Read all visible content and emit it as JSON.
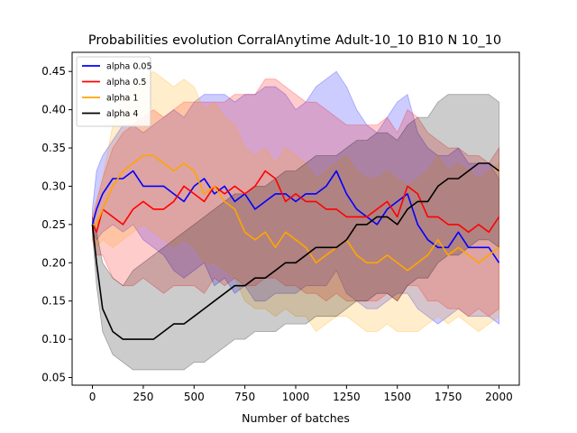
{
  "chart_data": {
    "type": "line",
    "title": "Probabilities evolution CorralAnytime Adult-10_10 B10 N 10_10",
    "xlabel": "Number of batches",
    "ylabel": "",
    "xlim": [
      -100,
      2100
    ],
    "ylim": [
      0.04,
      0.475
    ],
    "xticks": [
      0,
      250,
      500,
      750,
      1000,
      1250,
      1500,
      1750,
      2000
    ],
    "yticks": [
      0.05,
      0.1,
      0.15,
      0.2,
      0.25,
      0.3,
      0.35,
      0.4,
      0.45
    ],
    "ytick_labels": [
      "0.05",
      "0.10",
      "0.15",
      "0.20",
      "0.25",
      "0.30",
      "0.35",
      "0.40",
      "0.45"
    ],
    "grid": false,
    "legend_position": "top-left",
    "band_opacity": 0.2,
    "x": [
      0,
      20,
      50,
      100,
      150,
      200,
      250,
      300,
      350,
      400,
      450,
      500,
      550,
      600,
      650,
      700,
      750,
      800,
      850,
      900,
      950,
      1000,
      1050,
      1100,
      1150,
      1200,
      1250,
      1300,
      1350,
      1400,
      1450,
      1500,
      1550,
      1600,
      1650,
      1700,
      1750,
      1800,
      1850,
      1900,
      1950,
      2000
    ],
    "series": [
      {
        "name": "alpha 0.05",
        "color": "#0000ff",
        "values": [
          0.25,
          0.27,
          0.29,
          0.31,
          0.31,
          0.32,
          0.3,
          0.3,
          0.3,
          0.29,
          0.28,
          0.3,
          0.31,
          0.29,
          0.3,
          0.28,
          0.29,
          0.27,
          0.28,
          0.29,
          0.29,
          0.28,
          0.29,
          0.29,
          0.3,
          0.32,
          0.29,
          0.27,
          0.26,
          0.25,
          0.27,
          0.28,
          0.29,
          0.25,
          0.23,
          0.22,
          0.22,
          0.24,
          0.22,
          0.22,
          0.22,
          0.2
        ],
        "upper": [
          0.27,
          0.32,
          0.34,
          0.36,
          0.38,
          0.38,
          0.37,
          0.38,
          0.39,
          0.4,
          0.39,
          0.41,
          0.42,
          0.42,
          0.42,
          0.41,
          0.42,
          0.42,
          0.43,
          0.43,
          0.42,
          0.4,
          0.41,
          0.43,
          0.44,
          0.45,
          0.43,
          0.4,
          0.38,
          0.37,
          0.39,
          0.41,
          0.42,
          0.37,
          0.35,
          0.34,
          0.34,
          0.35,
          0.33,
          0.33,
          0.33,
          0.31
        ],
        "lower": [
          0.24,
          0.23,
          0.24,
          0.25,
          0.24,
          0.25,
          0.23,
          0.22,
          0.21,
          0.19,
          0.18,
          0.19,
          0.2,
          0.17,
          0.18,
          0.16,
          0.17,
          0.15,
          0.15,
          0.16,
          0.16,
          0.16,
          0.17,
          0.17,
          0.17,
          0.19,
          0.16,
          0.15,
          0.14,
          0.14,
          0.15,
          0.16,
          0.16,
          0.14,
          0.13,
          0.12,
          0.13,
          0.14,
          0.13,
          0.13,
          0.13,
          0.12
        ]
      },
      {
        "name": "alpha 0.5",
        "color": "#ff0000",
        "values": [
          0.25,
          0.24,
          0.27,
          0.26,
          0.25,
          0.27,
          0.28,
          0.27,
          0.27,
          0.28,
          0.3,
          0.29,
          0.28,
          0.3,
          0.29,
          0.3,
          0.29,
          0.3,
          0.32,
          0.31,
          0.28,
          0.29,
          0.28,
          0.28,
          0.27,
          0.27,
          0.26,
          0.26,
          0.26,
          0.27,
          0.28,
          0.26,
          0.3,
          0.29,
          0.26,
          0.26,
          0.25,
          0.25,
          0.24,
          0.25,
          0.24,
          0.26
        ],
        "upper": [
          0.26,
          0.28,
          0.31,
          0.35,
          0.37,
          0.38,
          0.39,
          0.4,
          0.39,
          0.4,
          0.41,
          0.41,
          0.41,
          0.41,
          0.41,
          0.42,
          0.42,
          0.42,
          0.44,
          0.44,
          0.43,
          0.42,
          0.41,
          0.41,
          0.4,
          0.39,
          0.38,
          0.38,
          0.38,
          0.38,
          0.39,
          0.37,
          0.4,
          0.39,
          0.37,
          0.36,
          0.35,
          0.35,
          0.34,
          0.34,
          0.33,
          0.35
        ],
        "lower": [
          0.23,
          0.21,
          0.21,
          0.18,
          0.17,
          0.17,
          0.18,
          0.17,
          0.16,
          0.17,
          0.17,
          0.17,
          0.16,
          0.18,
          0.17,
          0.18,
          0.17,
          0.17,
          0.18,
          0.18,
          0.17,
          0.17,
          0.16,
          0.16,
          0.15,
          0.16,
          0.15,
          0.15,
          0.15,
          0.15,
          0.16,
          0.15,
          0.17,
          0.17,
          0.15,
          0.15,
          0.14,
          0.14,
          0.13,
          0.14,
          0.13,
          0.14
        ]
      },
      {
        "name": "alpha 1",
        "color": "#ffa500",
        "values": [
          0.25,
          0.25,
          0.27,
          0.3,
          0.32,
          0.33,
          0.34,
          0.34,
          0.33,
          0.32,
          0.33,
          0.32,
          0.29,
          0.3,
          0.28,
          0.27,
          0.24,
          0.23,
          0.24,
          0.22,
          0.24,
          0.23,
          0.22,
          0.2,
          0.21,
          0.22,
          0.23,
          0.21,
          0.2,
          0.2,
          0.21,
          0.2,
          0.19,
          0.2,
          0.21,
          0.23,
          0.21,
          0.22,
          0.21,
          0.2,
          0.21,
          0.22
        ],
        "upper": [
          0.26,
          0.28,
          0.31,
          0.38,
          0.42,
          0.43,
          0.44,
          0.45,
          0.44,
          0.43,
          0.44,
          0.43,
          0.4,
          0.41,
          0.39,
          0.38,
          0.35,
          0.34,
          0.35,
          0.33,
          0.35,
          0.34,
          0.33,
          0.31,
          0.32,
          0.33,
          0.34,
          0.32,
          0.31,
          0.31,
          0.32,
          0.31,
          0.3,
          0.31,
          0.32,
          0.34,
          0.32,
          0.33,
          0.32,
          0.31,
          0.32,
          0.33
        ],
        "lower": [
          0.24,
          0.22,
          0.23,
          0.22,
          0.23,
          0.24,
          0.25,
          0.24,
          0.23,
          0.22,
          0.23,
          0.22,
          0.2,
          0.2,
          0.19,
          0.18,
          0.15,
          0.14,
          0.14,
          0.13,
          0.14,
          0.13,
          0.13,
          0.11,
          0.12,
          0.13,
          0.13,
          0.12,
          0.11,
          0.11,
          0.12,
          0.11,
          0.11,
          0.11,
          0.12,
          0.13,
          0.12,
          0.13,
          0.12,
          0.11,
          0.12,
          0.13
        ]
      },
      {
        "name": "alpha 4",
        "color": "#000000",
        "values": [
          0.25,
          0.2,
          0.14,
          0.11,
          0.1,
          0.1,
          0.1,
          0.1,
          0.11,
          0.12,
          0.12,
          0.13,
          0.14,
          0.15,
          0.16,
          0.17,
          0.17,
          0.18,
          0.18,
          0.19,
          0.2,
          0.2,
          0.21,
          0.22,
          0.22,
          0.22,
          0.23,
          0.25,
          0.25,
          0.26,
          0.26,
          0.25,
          0.27,
          0.28,
          0.28,
          0.3,
          0.31,
          0.31,
          0.32,
          0.33,
          0.33,
          0.32
        ],
        "upper": [
          0.26,
          0.24,
          0.2,
          0.18,
          0.17,
          0.19,
          0.2,
          0.21,
          0.22,
          0.23,
          0.24,
          0.25,
          0.26,
          0.27,
          0.28,
          0.29,
          0.29,
          0.3,
          0.3,
          0.31,
          0.32,
          0.32,
          0.33,
          0.34,
          0.34,
          0.34,
          0.35,
          0.36,
          0.36,
          0.37,
          0.37,
          0.36,
          0.38,
          0.39,
          0.39,
          0.41,
          0.42,
          0.42,
          0.42,
          0.42,
          0.42,
          0.41
        ],
        "lower": [
          0.24,
          0.17,
          0.11,
          0.08,
          0.07,
          0.06,
          0.06,
          0.06,
          0.06,
          0.06,
          0.06,
          0.07,
          0.07,
          0.08,
          0.09,
          0.1,
          0.1,
          0.11,
          0.11,
          0.11,
          0.12,
          0.12,
          0.12,
          0.13,
          0.13,
          0.13,
          0.14,
          0.15,
          0.15,
          0.16,
          0.16,
          0.15,
          0.17,
          0.18,
          0.18,
          0.2,
          0.21,
          0.21,
          0.22,
          0.23,
          0.23,
          0.22
        ]
      }
    ]
  }
}
